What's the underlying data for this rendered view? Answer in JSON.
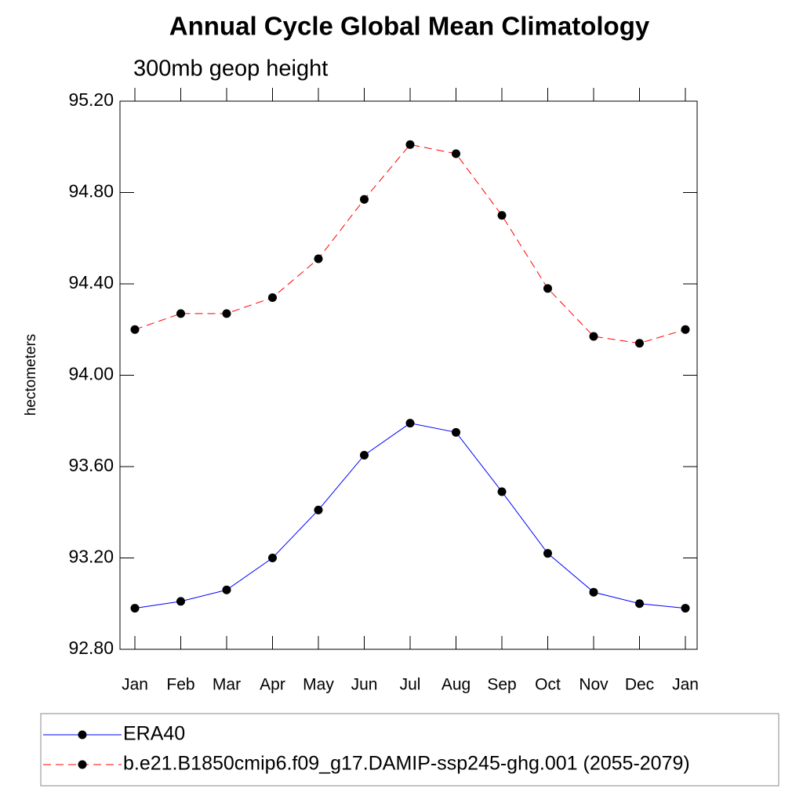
{
  "chart_data": {
    "type": "line",
    "title": "Annual Cycle Global Mean Climatology",
    "subtitle": "300mb geop height",
    "y_label": "hectometers",
    "categories": [
      "Jan",
      "Feb",
      "Mar",
      "Apr",
      "May",
      "Jun",
      "Jul",
      "Aug",
      "Sep",
      "Oct",
      "Nov",
      "Dec",
      "Jan"
    ],
    "series": [
      {
        "name": "ERA40",
        "color": "#0000ff",
        "dash": false,
        "values": [
          92.98,
          93.01,
          93.06,
          93.2,
          93.41,
          93.65,
          93.79,
          93.75,
          93.49,
          93.22,
          93.05,
          93.0,
          92.98
        ]
      },
      {
        "name": "b.e21.B1850cmip6.f09_g17.DAMIP-ssp245-ghg.001 (2055-2079)",
        "color": "#ff0000",
        "dash": true,
        "values": [
          94.2,
          94.27,
          94.27,
          94.34,
          94.51,
          94.77,
          95.01,
          94.97,
          94.7,
          94.38,
          94.17,
          94.14,
          94.2
        ]
      }
    ],
    "ylim": [
      92.8,
      95.2
    ],
    "yticks": [
      {
        "value": 92.8,
        "label": "92.80"
      },
      {
        "value": 93.2,
        "label": "93.20"
      },
      {
        "value": 93.6,
        "label": "93.60"
      },
      {
        "value": 94.0,
        "label": "94.00"
      },
      {
        "value": 94.4,
        "label": "94.40"
      },
      {
        "value": 94.8,
        "label": "94.80"
      },
      {
        "value": 95.2,
        "label": "95.20"
      }
    ],
    "legend": "bottom"
  }
}
